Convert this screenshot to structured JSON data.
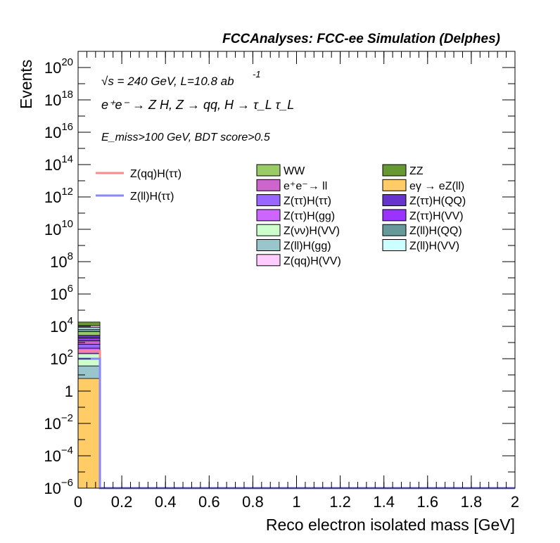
{
  "chart_data": {
    "type": "bar",
    "stacked": true,
    "title": "FCCAnalyses: FCC-ee Simulation (Delphes)",
    "xlabel": "Reco electron isolated mass [GeV]",
    "ylabel": "Events",
    "xlim": [
      0,
      2
    ],
    "ylim": [
      1e-06,
      1e+21
    ],
    "yscale": "log",
    "grid": false,
    "x_ticks": [
      "0",
      "0.2",
      "0.4",
      "0.6",
      "0.8",
      "1",
      "1.2",
      "1.4",
      "1.6",
      "1.8",
      "2"
    ],
    "y_ticks": [
      {
        "base": "10",
        "exp": "−6",
        "v": 1e-06
      },
      {
        "base": "10",
        "exp": "−4",
        "v": 0.0001
      },
      {
        "base": "10",
        "exp": "−2",
        "v": 0.01
      },
      {
        "base": "1",
        "exp": "",
        "v": 1
      },
      {
        "base": "10",
        "exp": "2",
        "v": 100.0
      },
      {
        "base": "10",
        "exp": "4",
        "v": 10000.0
      },
      {
        "base": "10",
        "exp": "6",
        "v": 1000000.0
      },
      {
        "base": "10",
        "exp": "8",
        "v": 100000000.0
      },
      {
        "base": "10",
        "exp": "10",
        "v": 10000000000.0
      },
      {
        "base": "10",
        "exp": "12",
        "v": 1000000000000.0
      },
      {
        "base": "10",
        "exp": "14",
        "v": 100000000000000.0
      },
      {
        "base": "10",
        "exp": "16",
        "v": 1e+16
      },
      {
        "base": "10",
        "exp": "18",
        "v": 1e+18
      },
      {
        "base": "10",
        "exp": "20",
        "v": 1e+20
      }
    ],
    "annotations": {
      "energy": "√s = 240 GeV, L=10.8 ab",
      "energy_exp": "-1",
      "process": "e⁺e⁻ → Z H, Z → qq, H → τ_L τ_L",
      "cut": "E_miss>100 GeV, BDT score>0.5"
    },
    "bin_edges": [
      0,
      0.1
    ],
    "stack": [
      {
        "name": "eγ → eZ(ll)",
        "color": "#ffcc66",
        "value": 6
      },
      {
        "name": "Z(ll)H(gg)",
        "color": "#99c6cc",
        "value": 30
      },
      {
        "name": "Z(νν)H(VV)",
        "color": "#ccffcc",
        "value": 170
      },
      {
        "name": "Z(ττ)H(gg)",
        "color": "#cc66ff",
        "value": 240
      },
      {
        "name": "Z(ττ)H(ττ)",
        "color": "#9966ff",
        "value": 340
      },
      {
        "name": "e⁺e⁻→ ll",
        "color": "#cc66cc",
        "value": 480
      },
      {
        "name": "Z(ττ)H(VV)",
        "color": "#9933ff",
        "value": 650
      },
      {
        "name": "Z(ττ)H(QQ)",
        "color": "#6633cc",
        "value": 850
      },
      {
        "name": "WW",
        "color": "#99cc66",
        "value": 1900
      },
      {
        "name": "Z(ll)H(QQ)",
        "color": "#669999",
        "value": 2000
      },
      {
        "name": "Z(ll)H(VV)",
        "color": "#ccffff",
        "value": 2100
      },
      {
        "name": "Z(qq)H(VV)",
        "color": "#ffccff",
        "value": 2200
      },
      {
        "name": "ZZ",
        "color": "#669933",
        "value": 7500
      }
    ],
    "signals": [
      {
        "name": "Z(qq)H(ττ)",
        "color": "#ff8888",
        "values": [
          300
        ]
      },
      {
        "name": "Z(ll)H(ττ)",
        "color": "#8888ff",
        "values": [
          100
        ]
      }
    ],
    "legend_signals": [
      "Z(qq)H(ττ)",
      "Z(ll)H(ττ)"
    ],
    "legend_backgrounds": [
      {
        "name": "WW",
        "color": "#99cc66"
      },
      {
        "name": "ZZ",
        "color": "#669933"
      },
      {
        "name": "e⁺e⁻→ ll",
        "color": "#cc66cc"
      },
      {
        "name": "eγ → eZ(ll)",
        "color": "#ffcc66"
      },
      {
        "name": "Z(ττ)H(ττ)",
        "color": "#9966ff"
      },
      {
        "name": "Z(ττ)H(QQ)",
        "color": "#6633cc"
      },
      {
        "name": "Z(ττ)H(gg)",
        "color": "#cc66ff"
      },
      {
        "name": "Z(ττ)H(VV)",
        "color": "#9933ff"
      },
      {
        "name": "Z(νν)H(VV)",
        "color": "#ccffcc"
      },
      {
        "name": "Z(ll)H(QQ)",
        "color": "#669999"
      },
      {
        "name": "Z(ll)H(gg)",
        "color": "#99c6cc"
      },
      {
        "name": "Z(ll)H(VV)",
        "color": "#ccffff"
      },
      {
        "name": "Z(qq)H(VV)",
        "color": "#ffccff"
      }
    ]
  }
}
